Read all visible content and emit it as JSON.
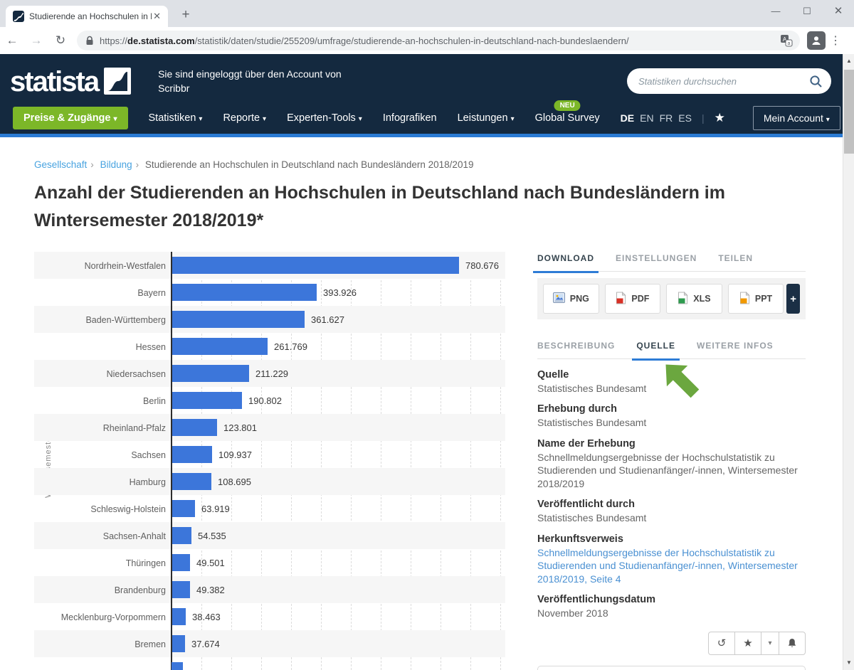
{
  "colors": {
    "header_navy": "#14293f",
    "header_accent_blue": "#2b7bd4",
    "brand_green": "#7cb728",
    "bar_blue": "#3c76da",
    "tab_underline_blue": "#2e7cd6",
    "breadcrumb_link_blue": "#48a3e0",
    "body_link_blue": "#4a90d2",
    "arrow_green": "#6ba73f"
  },
  "browser": {
    "tab_title": "Studierende an Hochschulen in D",
    "url_scheme": "https://",
    "url_domain": "de.statista.com",
    "url_path": "/statistik/daten/studie/255209/umfrage/studierende-an-hochschulen-in-deutschland-nach-bundeslaendern/"
  },
  "header": {
    "logo_text": "statista",
    "login_note_line1": "Sie sind eingeloggt über den Account von",
    "login_note_line2": "Scribbr",
    "search_placeholder": "Statistiken durchsuchen",
    "nav": [
      {
        "label": "Preise & Zugänge",
        "caret": "▾"
      },
      {
        "label": "Statistiken",
        "caret": "▾"
      },
      {
        "label": "Reporte",
        "caret": "▾"
      },
      {
        "label": "Experten-Tools",
        "caret": "▾"
      },
      {
        "label": "Infografiken",
        "caret": ""
      },
      {
        "label": "Leistungen",
        "caret": "▾"
      },
      {
        "label": "Global Survey",
        "caret": "",
        "badge": "NEU"
      }
    ],
    "languages": [
      "DE",
      "EN",
      "FR",
      "ES"
    ],
    "active_language": "DE",
    "account_label": "Mein Account",
    "account_caret": "▾"
  },
  "breadcrumb": {
    "links": [
      "Gesellschaft",
      "Bildung"
    ],
    "current": "Studierende an Hochschulen in Deutschland nach Bundesländern 2018/2019",
    "separator": "›"
  },
  "page": {
    "title": "Anzahl der Studierenden an Hochschulen in Deutschland nach Bundesländern im Wintersemester 2018/2019*"
  },
  "chart_data": {
    "type": "bar",
    "orientation": "horizontal",
    "title": "Anzahl der Studierenden an Hochschulen in Deutschland nach Bundesländern im Wintersemester 2018/2019*",
    "ylabel": "Wintersemester",
    "xlabel": "",
    "categories": [
      "Nordrhein-Westfalen",
      "Bayern",
      "Baden-Württemberg",
      "Hessen",
      "Niedersachsen",
      "Berlin",
      "Rheinland-Pfalz",
      "Sachsen",
      "Hamburg",
      "Schleswig-Holstein",
      "Sachsen-Anhalt",
      "Thüringen",
      "Brandenburg",
      "Mecklenburg-Vorpommern",
      "Bremen"
    ],
    "values": [
      780676,
      393926,
      361627,
      261769,
      211229,
      190802,
      123801,
      109937,
      108695,
      63919,
      54535,
      49501,
      49382,
      38463,
      37674
    ],
    "display_values": [
      "780.676",
      "393.926",
      "361.627",
      "261.769",
      "211.229",
      "190.802",
      "123.801",
      "109.937",
      "108.695",
      "63.919",
      "54.535",
      "49.501",
      "49.382",
      "38.463",
      "37.674"
    ],
    "bar_color": "#3c76da",
    "grid": "dashed-vertical",
    "legend": "none",
    "note": "a 16th bar is partially visible, cut off at the bottom edge of the viewport"
  },
  "panel": {
    "top_tabs": [
      "DOWNLOAD",
      "EINSTELLUNGEN",
      "TEILEN"
    ],
    "top_tabs_active": "DOWNLOAD",
    "downloads": [
      "PNG",
      "PDF",
      "XLS",
      "PPT"
    ],
    "plus_label": "+",
    "info_tabs": [
      "BESCHREIBUNG",
      "QUELLE",
      "WEITERE INFOS"
    ],
    "info_tabs_active": "QUELLE",
    "sections": [
      {
        "label": "Quelle",
        "value": "Statistisches Bundesamt",
        "link": false
      },
      {
        "label": "Erhebung durch",
        "value": "Statistisches Bundesamt",
        "link": false
      },
      {
        "label": "Name der Erhebung",
        "value": "Schnellmeldungsergebnisse der Hochschulstatistik zu Studierenden und Studienanfänger/-innen, Wintersemester 2018/2019",
        "link": false
      },
      {
        "label": "Veröffentlicht durch",
        "value": "Statistisches Bundesamt",
        "link": false
      },
      {
        "label": "Herkunftsverweis",
        "value": "Schnellmeldungsergebnisse der Hochschulstatistik zu Studierenden und Studienanfänger/-innen, Wintersemester 2018/2019, Seite 4",
        "link": true
      },
      {
        "label": "Veröffentlichungsdatum",
        "value": "November 2018",
        "link": false
      }
    ]
  }
}
